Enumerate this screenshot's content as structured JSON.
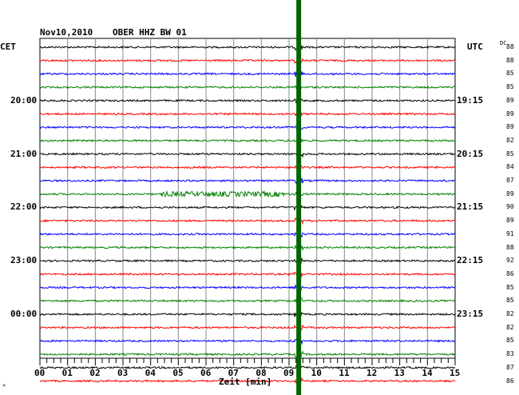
{
  "header": {
    "date": "Nov10,2010",
    "station": "OBER HHZ BW 01",
    "left_tz": "CET",
    "right_tz": "UTC",
    "dc_label": "DC"
  },
  "chart_data": {
    "type": "line",
    "title": "Nov10,2010 OBER HHZ BW 01",
    "xlabel": "Zeit [min]",
    "x_tick_labels": [
      "00",
      "01",
      "02",
      "03",
      "04",
      "05",
      "06",
      "07",
      "08",
      "09",
      "10",
      "11",
      "12",
      "13",
      "14",
      "15"
    ],
    "xlim": [
      0,
      15
    ],
    "grid": true,
    "left_time_labels": [
      "20:00",
      "21:00",
      "22:00",
      "23:00",
      "00:00"
    ],
    "right_time_labels": [
      "UTC",
      "19:15",
      "20:15",
      "21:15",
      "22:15",
      "23:15"
    ],
    "dc_values": [
      "88",
      "88",
      "85",
      "85",
      "89",
      "89",
      "89",
      "82",
      "85",
      "84",
      "87",
      "89",
      "90",
      "89",
      "91",
      "88",
      "92",
      "86",
      "85",
      "85",
      "82",
      "82",
      "85",
      "83",
      "87",
      "86"
    ],
    "trace_colors": [
      "#000000",
      "#ff0000",
      "#0000ff",
      "#008000"
    ],
    "event_marker": {
      "minute": 9.35,
      "color": "#006400"
    },
    "noise_burst": {
      "trace_index": 11,
      "from_minute": 4.4,
      "to_minute": 8.8
    }
  },
  "footer": {
    "corner_mark": "»"
  }
}
